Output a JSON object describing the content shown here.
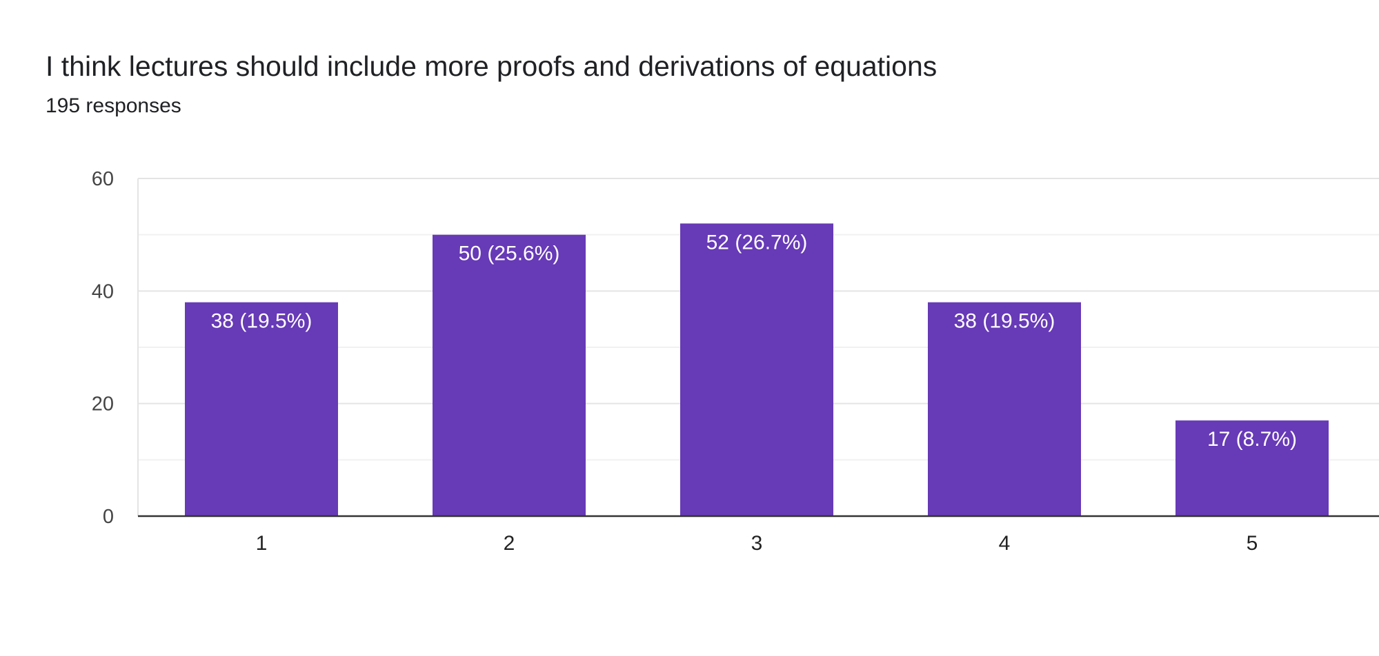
{
  "chart_data": {
    "type": "bar",
    "title": "I think lectures should include more proofs and derivations of equations",
    "subtitle": "195 responses",
    "categories": [
      "1",
      "2",
      "3",
      "4",
      "5"
    ],
    "values": [
      38,
      50,
      52,
      38,
      17
    ],
    "data_labels": [
      "38 (19.5%)",
      "50 (25.6%)",
      "52 (26.7%)",
      "38 (19.5%)",
      "17 (8.7%)"
    ],
    "y_ticks": [
      "0",
      "20",
      "40",
      "60"
    ],
    "ylim": [
      0,
      60
    ],
    "grid": true,
    "bar_color": "#673ab7",
    "xlabel": "",
    "ylabel": ""
  }
}
